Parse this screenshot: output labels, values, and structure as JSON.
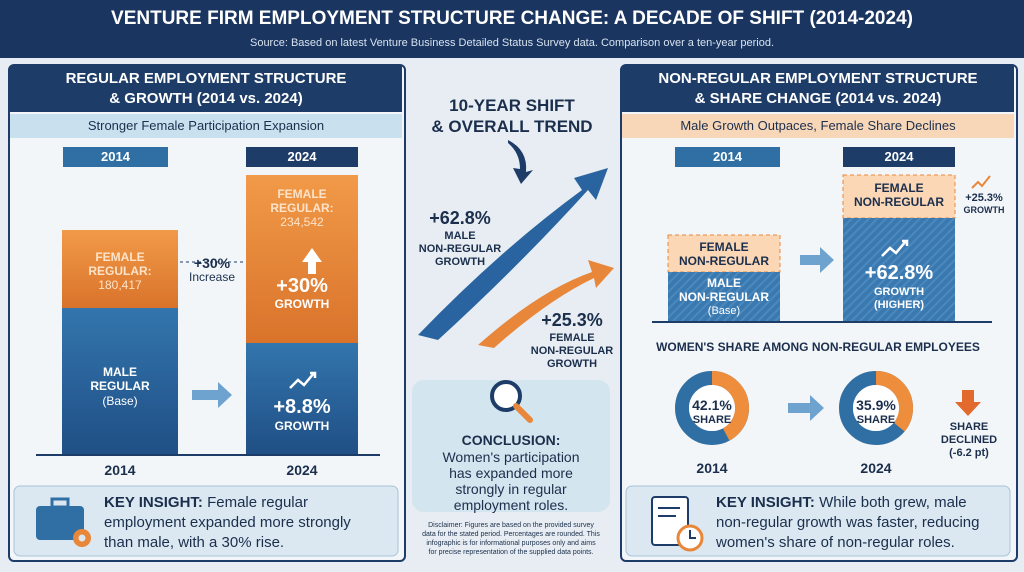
{
  "header": {
    "title": "VENTURE FIRM EMPLOYMENT STRUCTURE CHANGE: A DECADE OF SHIFT (2014-2024)",
    "source": "Source: Based on latest Venture Business Detailed Status Survey data. Comparison over a ten-year period."
  },
  "left_panel": {
    "title": [
      "REGULAR EMPLOYMENT STRUCTURE",
      "& GROWTH (2014 vs. 2024)"
    ],
    "subtitle": "Stronger Female Participation Expansion",
    "year_tags": [
      "2014",
      "2024"
    ],
    "bar_2014": {
      "female": [
        "FEMALE",
        "REGULAR:",
        "180,417"
      ],
      "male": [
        "MALE",
        "REGULAR",
        "(Base)"
      ]
    },
    "change": [
      "+30%",
      "Increase"
    ],
    "bar_2024": {
      "female": [
        "FEMALE",
        "REGULAR:",
        "234,542"
      ],
      "female_growth": [
        "+30%",
        "GROWTH"
      ],
      "male_growth": [
        "+8.8%",
        "GROWTH"
      ]
    },
    "axis_years": [
      "2014",
      "2024"
    ],
    "key_insight": {
      "label": "KEY INSIGHT:",
      "lines": [
        "Female regular",
        "employment expanded more strongly",
        "than male, with a 30% rise."
      ]
    }
  },
  "middle": {
    "title": [
      "10-YEAR SHIFT",
      "& OVERALL TREND"
    ],
    "male_growth": [
      "+62.8%",
      "MALE",
      "NON-REGULAR",
      "GROWTH"
    ],
    "female_growth": [
      "+25.3%",
      "FEMALE",
      "NON-REGULAR",
      "GROWTH"
    ],
    "conclusion": {
      "label": "CONCLUSION:",
      "lines": [
        "Women's participation",
        "has expanded more",
        "strongly in regular",
        "employment roles."
      ]
    },
    "disclaimer": [
      "Disclaimer: Figures are based on the provided survey",
      "data for the stated period. Percentages are rounded. This",
      "infographic is for informational purposes only and aims",
      "for precise representation of the supplied data points."
    ]
  },
  "right_panel": {
    "title": [
      "NON-REGULAR EMPLOYMENT STRUCTURE",
      "& SHARE CHANGE (2014 vs. 2024)"
    ],
    "subtitle": "Male Growth Outpaces, Female Share Declines",
    "year_tags": [
      "2014",
      "2024"
    ],
    "bar_2014": {
      "female": [
        "FEMALE",
        "NON-REGULAR"
      ],
      "male": [
        "MALE",
        "NON-REGULAR",
        "(Base)"
      ]
    },
    "bar_2024": {
      "female": [
        "FEMALE",
        "NON-REGULAR"
      ],
      "male_growth": [
        "+62.8%",
        "GROWTH",
        "(HIGHER)"
      ]
    },
    "female_growth": [
      "+25.3%",
      "GROWTH"
    ],
    "share_title": "WOMEN'S SHARE AMONG NON-REGULAR EMPLOYEES",
    "shares": [
      {
        "value": 42.1,
        "label": "42.1%",
        "sublabel": "SHARE",
        "year": "2014"
      },
      {
        "value": 35.9,
        "label": "35.9%",
        "sublabel": "SHARE",
        "year": "2024"
      }
    ],
    "share_change": [
      "SHARE",
      "DECLINED",
      "(-6.2 pt)"
    ],
    "key_insight": {
      "label": "KEY INSIGHT:",
      "lines": [
        "While both grew, male",
        "non-regular growth was faster, reducing",
        "women's share of non-regular roles."
      ]
    }
  }
}
